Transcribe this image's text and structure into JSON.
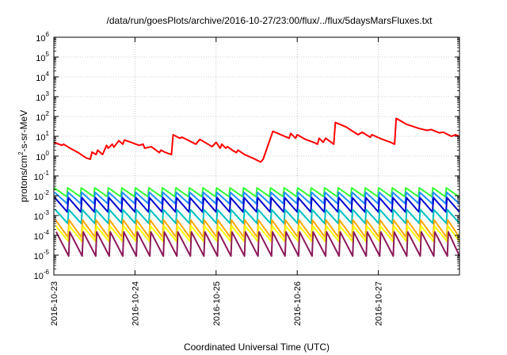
{
  "chart_data": {
    "type": "line",
    "title": "/data/run/goesPlots/archive/2016-10-27/23:00/flux/../flux/5daysMarsFluxes.txt",
    "xlabel": "Coordinated Universal Time (UTC)",
    "ylabel_base": "protons/cm",
    "ylabel_sup": "2",
    "ylabel_rest": "-s-sr-MeV",
    "yscale": "log",
    "ylim": [
      1e-06,
      1000000.0
    ],
    "xlim": [
      0,
      5
    ],
    "grid": true,
    "legend": "none",
    "x_ticks": [
      {
        "pos": 0,
        "label": "2016-10-23"
      },
      {
        "pos": 1,
        "label": "2016-10-24"
      },
      {
        "pos": 2,
        "label": "2016-10-25"
      },
      {
        "pos": 3,
        "label": "2016-10-26"
      },
      {
        "pos": 4,
        "label": "2016-10-27"
      }
    ],
    "y_ticks": [
      {
        "exp": 6,
        "label": "10",
        "sup": "6"
      },
      {
        "exp": 5,
        "label": "10",
        "sup": "5"
      },
      {
        "exp": 4,
        "label": "10",
        "sup": "4"
      },
      {
        "exp": 3,
        "label": "10",
        "sup": "3"
      },
      {
        "exp": 2,
        "label": "10",
        "sup": "2"
      },
      {
        "exp": 1,
        "label": "10",
        "sup": "1"
      },
      {
        "exp": 0,
        "label": "10",
        "sup": "0"
      },
      {
        "exp": -1,
        "label": "10",
        "sup": "-1"
      },
      {
        "exp": -2,
        "label": "10",
        "sup": "-2"
      },
      {
        "exp": -3,
        "label": "10",
        "sup": "-3"
      },
      {
        "exp": -4,
        "label": "10",
        "sup": "-4"
      },
      {
        "exp": -5,
        "label": "10",
        "sup": "-5"
      },
      {
        "exp": -6,
        "label": "10",
        "sup": "-6"
      }
    ],
    "series": [
      {
        "color": "#ff0000",
        "x": [
          0,
          0.1,
          0.12,
          0.2,
          0.3,
          0.4,
          0.45,
          0.47,
          0.52,
          0.54,
          0.6,
          0.65,
          0.67,
          0.72,
          0.74,
          0.8,
          0.85,
          0.87,
          0.95,
          1.05,
          1.1,
          1.12,
          1.2,
          1.3,
          1.32,
          1.38,
          1.45,
          1.47,
          1.55,
          1.58,
          1.75,
          1.8,
          1.95,
          2.0,
          2.05,
          2.07,
          2.12,
          2.14,
          2.2,
          2.25,
          2.27,
          2.35,
          2.45,
          2.55,
          2.58,
          2.7,
          2.8,
          2.9,
          2.92,
          2.98,
          3.0,
          3.1,
          3.2,
          3.25,
          3.27,
          3.32,
          3.35,
          3.45,
          3.47,
          3.6,
          3.75,
          3.8,
          3.9,
          3.92,
          4.05,
          4.15,
          4.2,
          4.22,
          4.35,
          4.5,
          4.6,
          4.65,
          4.75,
          4.8,
          4.9,
          4.95,
          5.0
        ],
        "y": [
          5,
          3.5,
          4,
          2.5,
          1.5,
          0.8,
          0.7,
          1.6,
          1.2,
          2,
          1.2,
          3.5,
          2.5,
          4,
          2.8,
          6,
          4,
          6.5,
          5,
          3.5,
          4,
          2.5,
          3,
          1.5,
          2,
          1.5,
          1.2,
          12,
          8,
          9,
          4,
          7,
          3,
          5,
          2.5,
          4,
          2.5,
          3,
          2,
          1.5,
          2,
          1.2,
          0.8,
          0.5,
          0.7,
          18,
          12,
          8,
          14,
          8,
          12,
          7,
          5,
          4,
          8,
          5,
          8,
          4,
          50,
          30,
          12,
          16,
          9,
          12,
          7,
          5,
          4,
          80,
          40,
          25,
          20,
          22,
          15,
          16,
          10,
          12,
          10
        ]
      },
      {
        "color": "#33ff33",
        "period": 0.1667,
        "high": 0.025,
        "low": 0.009
      },
      {
        "color": "#1e90ff",
        "period": 0.1667,
        "high": 0.015,
        "low": 0.004
      },
      {
        "color": "#0000cd",
        "period": 0.1667,
        "high": 0.008,
        "low": 0.0015
      },
      {
        "color": "#00c0c0",
        "period": 0.1667,
        "high": 0.002,
        "low": 0.0004
      },
      {
        "color": "#ffa500",
        "period": 0.1667,
        "high": 0.0006,
        "low": 8e-05
      },
      {
        "color": "#ffff00",
        "period": 0.1667,
        "high": 0.0003,
        "low": 5e-05
      },
      {
        "color": "#8b1a5a",
        "period": 0.1667,
        "high": 0.00015,
        "low": 9e-06
      }
    ]
  },
  "colors": {
    "frame": "#000000",
    "grid": "#a0a0a0",
    "background": "#ffffff"
  }
}
